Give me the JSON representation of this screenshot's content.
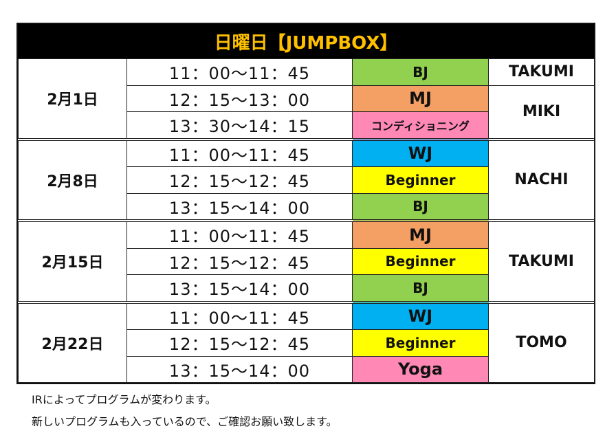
{
  "title": "日曜日【JUMPBOX】",
  "colors": {
    "title_text": "#ffc000",
    "BJ": "#92d050",
    "MJ": "#f4a065",
    "WJ": "#00b0f0",
    "Beginner": "#ffff00",
    "pink": "#ff88b4"
  },
  "groups": [
    {
      "date": "2月1日",
      "rows": [
        {
          "time": "11：00〜11：45",
          "program": "BJ",
          "color": "#92d050"
        },
        {
          "time": "12：15〜13：00",
          "program": "MJ",
          "color": "#f4a065"
        },
        {
          "time": "13：30〜14：15",
          "program": "コンディショニング",
          "color": "#ff88b4"
        }
      ],
      "instructors": [
        "TAKUMI",
        "MIKI"
      ]
    },
    {
      "date": "2月8日",
      "rows": [
        {
          "time": "11：00〜11：45",
          "program": "WJ",
          "color": "#00b0f0"
        },
        {
          "time": "12：15〜12：45",
          "program": "Beginner",
          "color": "#ffff00"
        },
        {
          "time": "13：15〜14：00",
          "program": "BJ",
          "color": "#92d050"
        }
      ],
      "instructors": [
        "NACHI"
      ]
    },
    {
      "date": "2月15日",
      "rows": [
        {
          "time": "11：00〜11：45",
          "program": "MJ",
          "color": "#f4a065"
        },
        {
          "time": "12：15〜12：45",
          "program": "Beginner",
          "color": "#ffff00"
        },
        {
          "time": "13：15〜14：00",
          "program": "BJ",
          "color": "#92d050"
        }
      ],
      "instructors": [
        "TAKUMI"
      ]
    },
    {
      "date": "2月22日",
      "rows": [
        {
          "time": "11：00〜11：45",
          "program": "WJ",
          "color": "#00b0f0"
        },
        {
          "time": "12：15〜12：45",
          "program": "Beginner",
          "color": "#ffff00"
        },
        {
          "time": "13：15〜14：00",
          "program": "Yoga",
          "color": "#ff88b4"
        }
      ],
      "instructors": [
        "TOMO"
      ]
    }
  ],
  "notes": [
    "IRによってプログラムが変わります。",
    "新しいプログラムも入っているので、ご確認お願い致します。"
  ]
}
